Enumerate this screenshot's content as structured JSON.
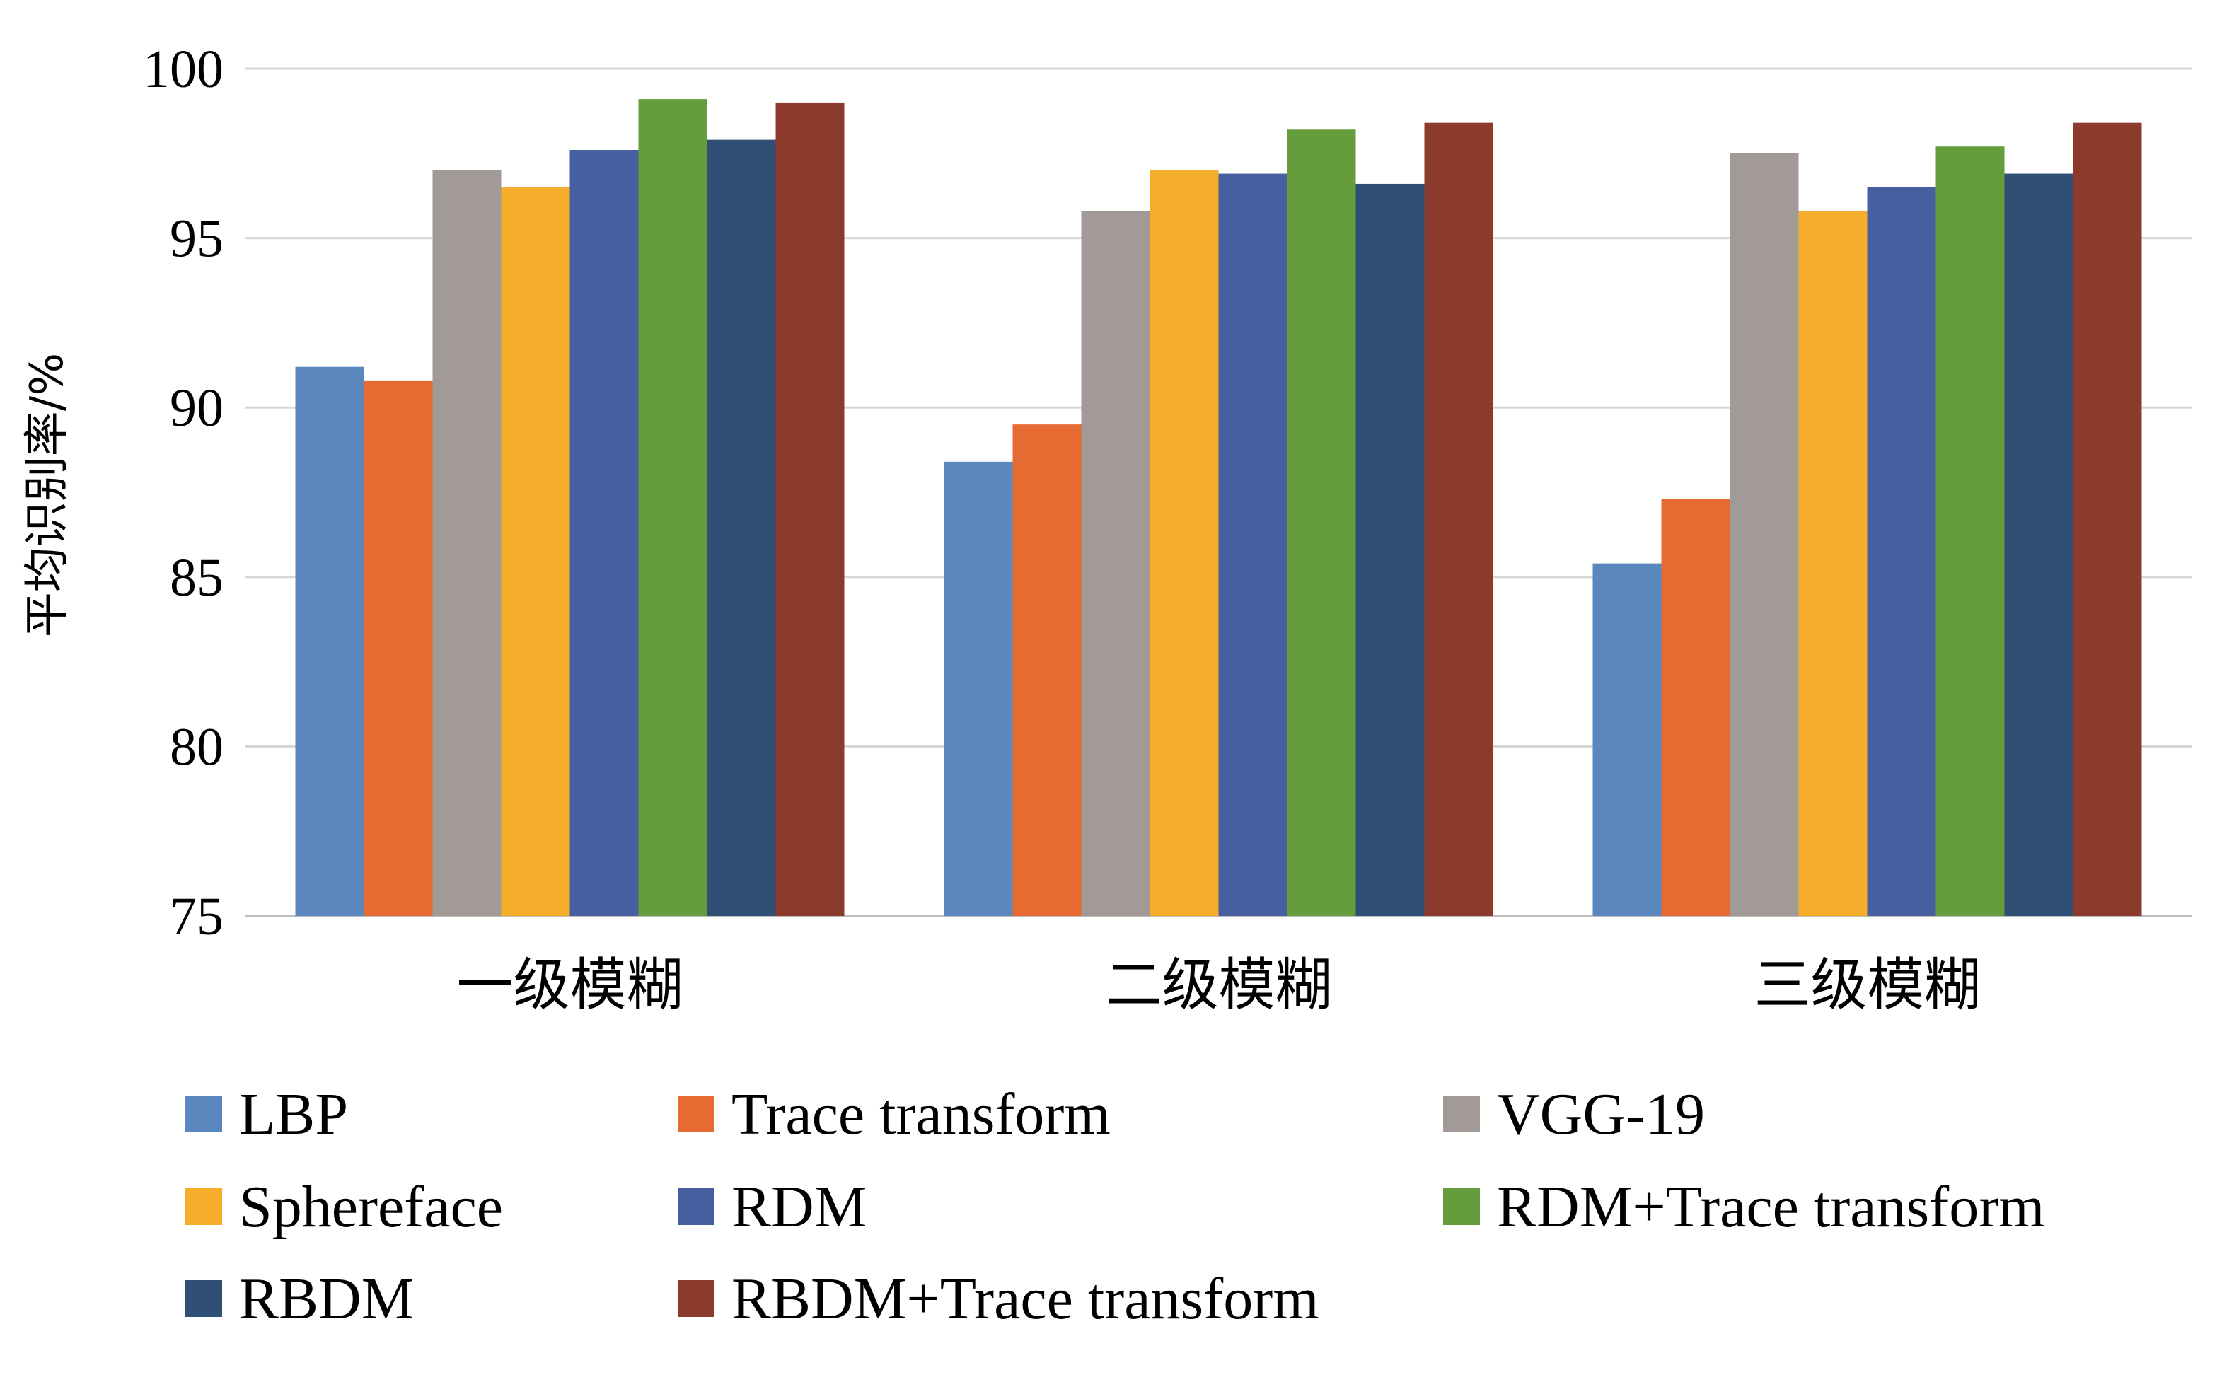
{
  "chart_data": {
    "type": "bar",
    "categories": [
      "一级模糊",
      "二级模糊",
      "三级模糊"
    ],
    "ylabel": "平均识别率/%",
    "xlabel": "",
    "title": "",
    "ylim": [
      75,
      100
    ],
    "yticks": [
      75,
      80,
      85,
      90,
      95,
      100
    ],
    "grid": true,
    "legend_position": "bottom",
    "series": [
      {
        "name": "LBP",
        "color": "#5a87bd",
        "values": [
          91.2,
          88.4,
          85.4
        ]
      },
      {
        "name": "Trace transform",
        "color": "#e56b33",
        "values": [
          90.8,
          89.5,
          87.3
        ]
      },
      {
        "name": "VGG-19",
        "color": "#a29a97",
        "values": [
          97.0,
          95.8,
          97.5
        ]
      },
      {
        "name": "Sphereface",
        "color": "#f6ad2c",
        "values": [
          96.5,
          97.0,
          95.8
        ]
      },
      {
        "name": "RDM",
        "color": "#465f9e",
        "values": [
          97.6,
          96.9,
          96.5
        ]
      },
      {
        "name": "RDM+Trace transform",
        "color": "#659d3c",
        "values": [
          99.1,
          98.2,
          97.7
        ]
      },
      {
        "name": "RBDM",
        "color": "#304f75",
        "values": [
          97.9,
          96.6,
          96.9
        ]
      },
      {
        "name": "RBDM+Trace transform",
        "color": "#8b3a2c",
        "values": [
          99.0,
          98.4,
          98.4
        ]
      }
    ]
  }
}
